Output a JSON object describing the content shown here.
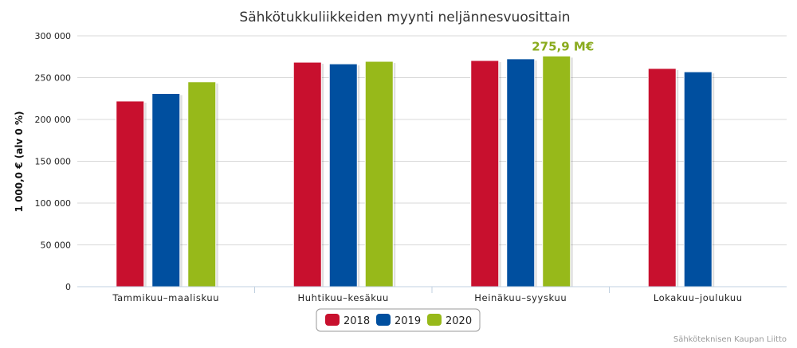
{
  "chart_data": {
    "type": "bar",
    "title": "Sähkötukkuliikkeiden myynti neljännesvuosittain",
    "ylabel": "1 000,0 € (alv 0 %)",
    "xlabel": "",
    "categories": [
      "Tammikuu–maaliskuu",
      "Huhtikuu–kesäkuu",
      "Heinäkuu–syyskuu",
      "Lokakuu–joulukuu"
    ],
    "series": [
      {
        "name": "2018",
        "color": "#c8102e",
        "values": [
          222000,
          268500,
          270500,
          261000
        ]
      },
      {
        "name": "2019",
        "color": "#004f9f",
        "values": [
          231000,
          266500,
          272500,
          257000
        ]
      },
      {
        "name": "2020",
        "color": "#97b91a",
        "values": [
          245000,
          269500,
          275900,
          null
        ]
      }
    ],
    "ylim": [
      0,
      300000
    ],
    "yticks": [
      0,
      50000,
      100000,
      150000,
      200000,
      250000,
      300000
    ],
    "ytick_labels": [
      "0",
      "50 000",
      "100 000",
      "150 000",
      "200 000",
      "250 000",
      "300 000"
    ],
    "grid": true,
    "legend_position": "bottom-center",
    "annotations": [
      {
        "text": "275,9 M€",
        "category_index": 2,
        "series_index": 2
      }
    ]
  },
  "source_credit": "Sähköteknisen Kaupan Liitto"
}
